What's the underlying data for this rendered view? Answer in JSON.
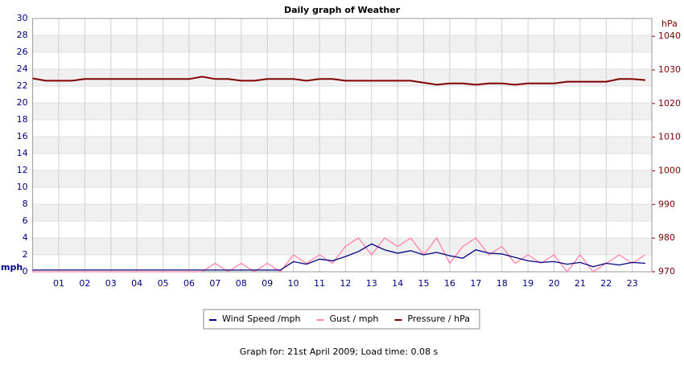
{
  "chart_data": {
    "type": "line",
    "title": "Daily graph of Weather",
    "y_label": "mph",
    "y2_label": "hPa",
    "footer": "Graph for: 21st April 2009; Load time: 0.08 s",
    "x": [
      0,
      0.5,
      1,
      1.5,
      2,
      2.5,
      3,
      3.5,
      4,
      4.5,
      5,
      5.5,
      6,
      6.5,
      7,
      7.5,
      8,
      8.5,
      9,
      9.5,
      10,
      10.5,
      11,
      11.5,
      12,
      12.5,
      13,
      13.5,
      14,
      14.5,
      15,
      15.5,
      16,
      16.5,
      17,
      17.5,
      18,
      18.5,
      19,
      19.5,
      20,
      20.5,
      21,
      21.5,
      22,
      22.5,
      23,
      23.5
    ],
    "series": [
      {
        "name": "Wind Speed /mph",
        "color": "#000080",
        "values": [
          0.2,
          0.2,
          0.2,
          0.2,
          0.2,
          0.2,
          0.2,
          0.2,
          0.2,
          0.2,
          0.2,
          0.2,
          0.2,
          0.2,
          0.2,
          0.2,
          0.2,
          0.2,
          0.2,
          0.2,
          1.2,
          0.9,
          1.5,
          1.3,
          1.8,
          2.4,
          3.3,
          2.6,
          2.2,
          2.5,
          2.0,
          2.3,
          1.9,
          1.6,
          2.6,
          2.2,
          2.1,
          1.7,
          1.3,
          1.1,
          1.2,
          0.9,
          1.1,
          0.6,
          1.0,
          0.8,
          1.1,
          1.0
        ]
      },
      {
        "name": "Gust / mph",
        "color": "#ff80a8",
        "values": [
          0,
          0,
          0,
          0,
          0,
          0,
          0,
          0,
          0,
          0,
          0,
          0,
          0,
          0,
          1,
          0,
          1,
          0,
          1,
          0,
          2,
          1,
          2,
          1,
          3,
          4,
          2,
          4,
          3,
          4,
          2,
          4,
          1,
          3,
          4,
          2,
          3,
          1,
          2,
          1,
          2,
          0,
          2,
          0,
          1,
          2,
          1,
          2
        ]
      },
      {
        "name": "Pressure / hPa",
        "color": "#800000",
        "axis": "y2",
        "values": [
          1027.5,
          1026.8,
          1026.8,
          1026.8,
          1027.3,
          1027.3,
          1027.3,
          1027.3,
          1027.3,
          1027.3,
          1027.3,
          1027.3,
          1027.3,
          1028.0,
          1027.3,
          1027.3,
          1026.8,
          1026.8,
          1027.3,
          1027.3,
          1027.3,
          1026.8,
          1027.3,
          1027.3,
          1026.8,
          1026.8,
          1026.8,
          1026.8,
          1026.8,
          1026.8,
          1026.2,
          1025.6,
          1026.0,
          1026.0,
          1025.6,
          1026.0,
          1026.0,
          1025.6,
          1026.0,
          1026.0,
          1026.0,
          1026.5,
          1026.5,
          1026.5,
          1026.5,
          1027.3,
          1027.3,
          1027.0
        ]
      }
    ],
    "xlim": [
      0,
      23.75
    ],
    "xticks": [
      {
        "value": 1,
        "label": "01"
      },
      {
        "value": 2,
        "label": "02"
      },
      {
        "value": 3,
        "label": "03"
      },
      {
        "value": 4,
        "label": "04"
      },
      {
        "value": 5,
        "label": "05"
      },
      {
        "value": 6,
        "label": "06"
      },
      {
        "value": 7,
        "label": "07"
      },
      {
        "value": 8,
        "label": "08"
      },
      {
        "value": 9,
        "label": "09"
      },
      10,
      11,
      12,
      13,
      14,
      15,
      16,
      17,
      18,
      19,
      20,
      21,
      22,
      23
    ],
    "ylim": [
      0,
      30
    ],
    "yticks": [
      0,
      2,
      4,
      6,
      8,
      10,
      12,
      14,
      16,
      18,
      20,
      22,
      24,
      26,
      28,
      30
    ],
    "y2lim": [
      970,
      1045.3
    ],
    "y2ticks": [
      970,
      980,
      990,
      1000,
      1010,
      1020,
      1030,
      1040
    ],
    "grid": true,
    "legend": "bottom"
  }
}
